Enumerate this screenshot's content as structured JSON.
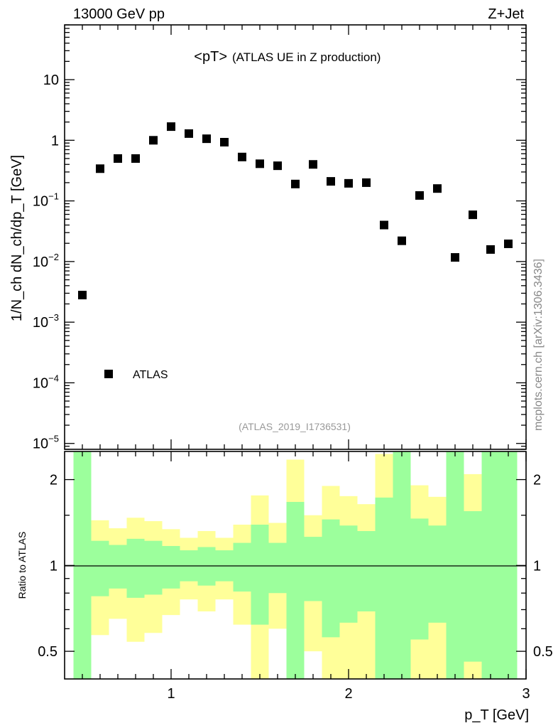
{
  "header": {
    "left": "13000 GeV pp",
    "right": "Z+Jet",
    "side_note": "mcplots.cern.ch [arXiv:1306.3436]",
    "analysis_id": "(ATLAS_2019_I1736531)"
  },
  "colors": {
    "stat_band": "#9cff9c",
    "total_band": "#ffff99",
    "marker": "#000000"
  },
  "chart_data": [
    {
      "type": "scatter",
      "title_main": "<pT>",
      "title_sub": "(ATLAS UE in Z production)",
      "xlabel": "p_T [GeV]",
      "ylabel": "1/N_ch dN_ch/dp_T [GeV]",
      "yscale": "log",
      "xlim": [
        0.4,
        3.0
      ],
      "ylim": [
        8e-06,
        80
      ],
      "ytick_labels": [
        {
          "v": 1e-05,
          "base": "10",
          "exp": "−5"
        },
        {
          "v": 0.0001,
          "base": "10",
          "exp": "−4"
        },
        {
          "v": 0.001,
          "base": "10",
          "exp": "−3"
        },
        {
          "v": 0.01,
          "base": "10",
          "exp": "−2"
        },
        {
          "v": 0.1,
          "base": "10",
          "exp": "−1"
        },
        {
          "v": 1,
          "base": "1",
          "exp": ""
        },
        {
          "v": 10,
          "base": "10",
          "exp": ""
        }
      ],
      "legend": {
        "label": "ATLAS",
        "placement": "bottom-left"
      },
      "series": [
        {
          "name": "ATLAS",
          "x": [
            0.5,
            0.6,
            0.7,
            0.8,
            0.9,
            1.0,
            1.1,
            1.2,
            1.3,
            1.4,
            1.5,
            1.6,
            1.7,
            1.8,
            1.9,
            2.0,
            2.1,
            2.2,
            2.3,
            2.4,
            2.5,
            2.6,
            2.7,
            2.8,
            2.9
          ],
          "y": [
            0.0028,
            0.34,
            0.5,
            0.5,
            1.0,
            1.68,
            1.29,
            1.06,
            0.93,
            0.53,
            0.41,
            0.38,
            0.19,
            0.4,
            0.21,
            0.195,
            0.2,
            0.04,
            0.022,
            0.123,
            0.16,
            0.0117,
            0.059,
            0.0158,
            0.0196
          ]
        }
      ]
    },
    {
      "type": "area",
      "ylabel": "Ratio to ATLAS",
      "yscale": "log",
      "xlim": [
        0.4,
        3.0
      ],
      "ylim": [
        0.4,
        2.51
      ],
      "xtick_labels": [
        "1",
        "2",
        "3"
      ],
      "ytick_labels": [
        "0.5",
        "1",
        "2"
      ],
      "bin_width": 0.1,
      "bins_x": [
        0.5,
        0.6,
        0.7,
        0.8,
        0.9,
        1.0,
        1.1,
        1.2,
        1.3,
        1.4,
        1.5,
        1.6,
        1.7,
        1.8,
        1.9,
        2.0,
        2.1,
        2.2,
        2.3,
        2.4,
        2.5,
        2.6,
        2.7,
        2.8,
        2.9
      ],
      "stat_up": [
        3,
        1.22,
        1.18,
        1.24,
        1.22,
        1.17,
        1.13,
        1.16,
        1.13,
        1.2,
        1.39,
        1.2,
        1.67,
        1.26,
        1.45,
        1.38,
        1.32,
        1.73,
        3,
        1.46,
        1.38,
        3,
        1.55,
        3,
        3
      ],
      "stat_down": [
        0.3,
        0.78,
        0.83,
        0.77,
        0.79,
        0.83,
        0.88,
        0.85,
        0.88,
        0.81,
        0.62,
        0.8,
        0.3,
        0.75,
        0.56,
        0.63,
        0.69,
        0.3,
        0.3,
        0.55,
        0.63,
        0.3,
        0.46,
        0.3,
        0.3
      ],
      "total_up": [
        3,
        1.44,
        1.35,
        1.47,
        1.43,
        1.34,
        1.25,
        1.32,
        1.25,
        1.39,
        1.76,
        1.41,
        2.35,
        1.5,
        1.9,
        1.75,
        1.64,
        2.46,
        3,
        1.91,
        1.74,
        3,
        2.09,
        3,
        3
      ],
      "total_down": [
        0.3,
        0.57,
        0.65,
        0.54,
        0.58,
        0.67,
        0.76,
        0.69,
        0.76,
        0.62,
        0.3,
        0.6,
        0.3,
        0.5,
        0.3,
        0.3,
        0.3,
        0.3,
        0.3,
        0.3,
        0.3,
        0.3,
        0.3,
        0.3,
        0.3
      ]
    }
  ]
}
